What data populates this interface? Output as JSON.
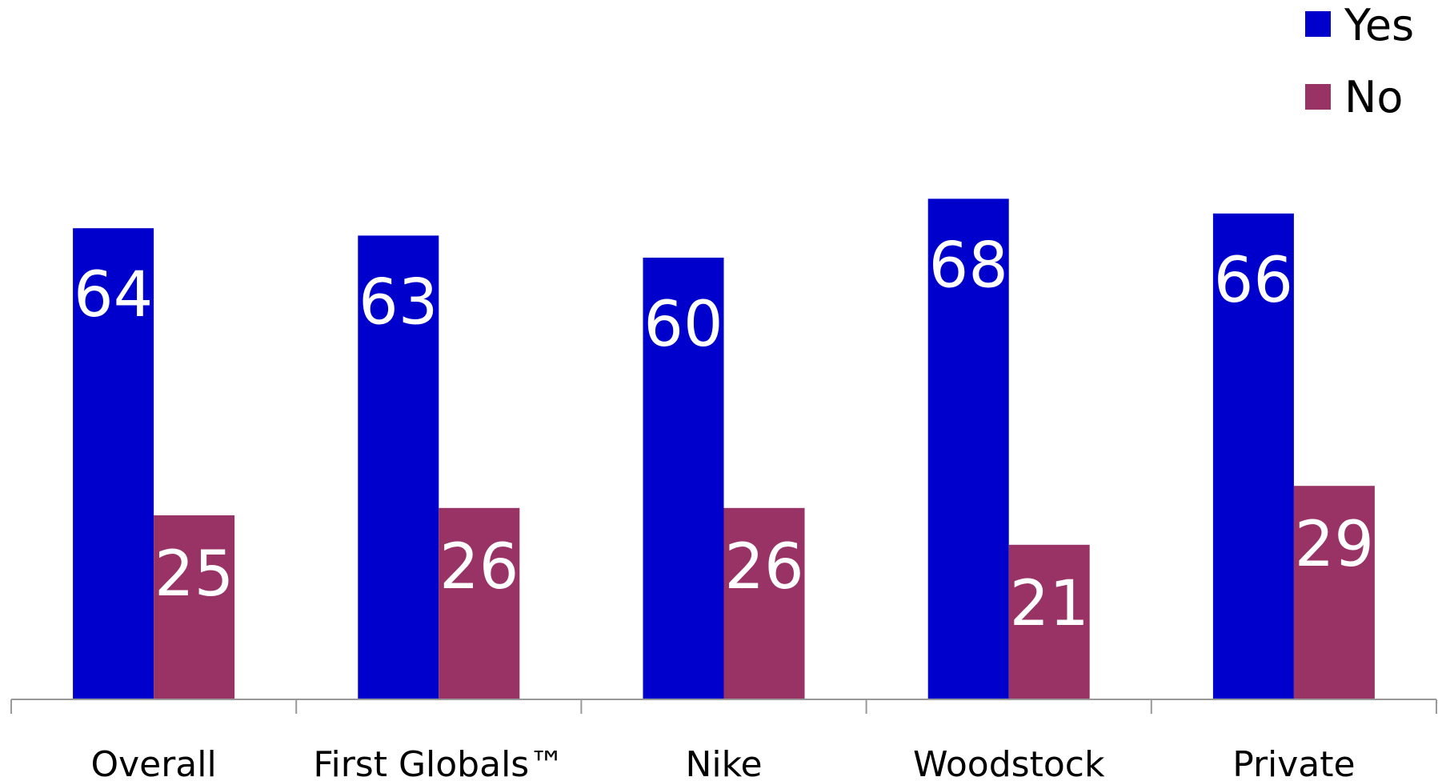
{
  "chart_data": {
    "type": "bar",
    "categories": [
      "Overall",
      "First Globals™",
      "Nike",
      "Woodstock",
      "Private"
    ],
    "series": [
      {
        "name": "Yes",
        "color": "#0000CC",
        "values": [
          64,
          63,
          60,
          68,
          66
        ]
      },
      {
        "name": "No",
        "color": "#993366",
        "values": [
          25,
          26,
          26,
          21,
          29
        ]
      }
    ],
    "title": "",
    "xlabel": "",
    "ylabel": "",
    "ylim": [
      0,
      100
    ],
    "grid": false,
    "legend_position": "top-right",
    "data_labels": true,
    "axis_color": "#999999"
  }
}
